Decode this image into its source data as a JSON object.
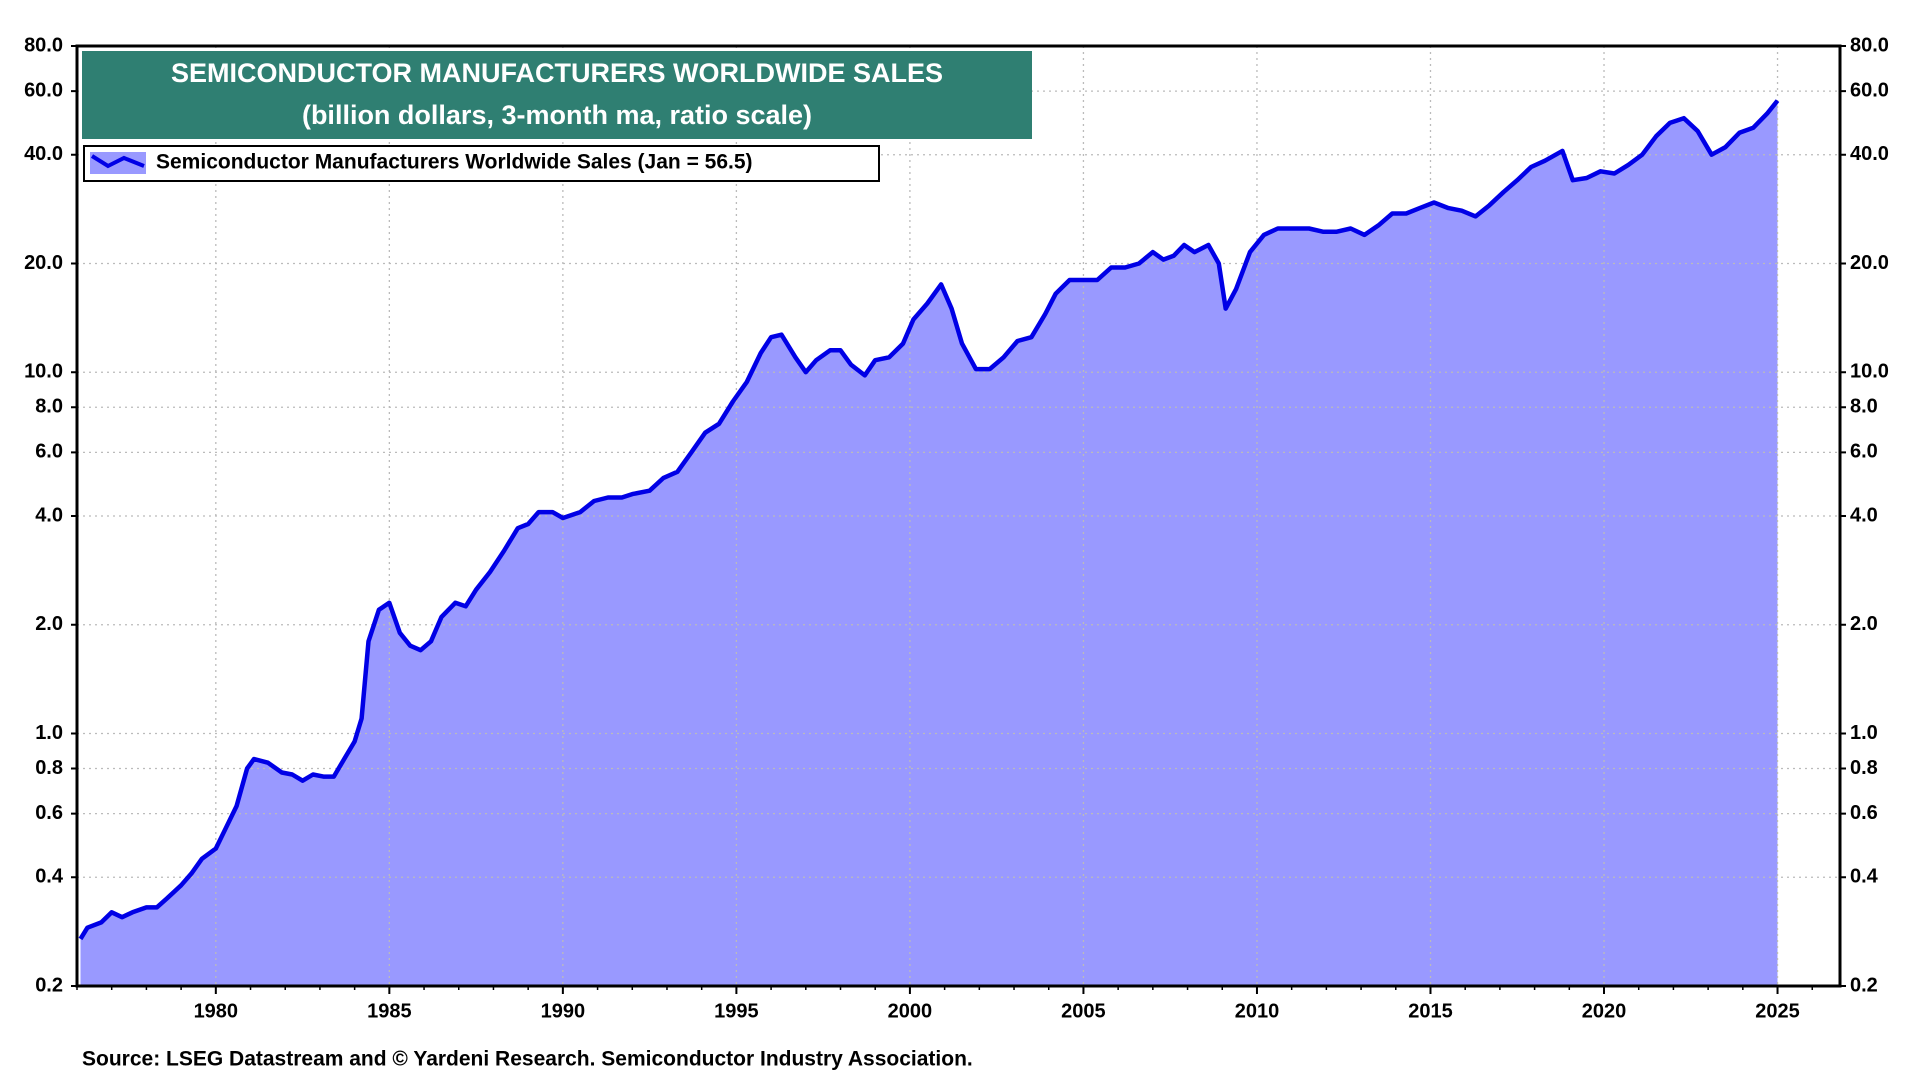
{
  "chart_data": {
    "type": "area",
    "log_y": true,
    "grid": true,
    "title": "SEMICONDUCTOR MANUFACTURERS WORLDWIDE SALES",
    "subtitle": "(billion dollars, 3-month ma, ratio scale)",
    "source": "Source: LSEG Datastream and © Yardeni Research. Semiconductor Industry Association.",
    "legend": "upper left",
    "xlim": [
      1976,
      2026.8
    ],
    "xticks": [
      1980,
      1985,
      1990,
      1995,
      2000,
      2005,
      2010,
      2015,
      2020,
      2025
    ],
    "ylim": [
      0.2,
      80
    ],
    "yticks": [
      0.2,
      0.4,
      0.6,
      0.8,
      {
        "value": 1,
        "label": "1.0"
      },
      {
        "value": 2,
        "label": "2.0"
      },
      {
        "value": 4,
        "label": "4.0"
      },
      {
        "value": 6,
        "label": "6.0"
      },
      {
        "value": 8,
        "label": "8.0"
      },
      {
        "value": 10,
        "label": "10.0"
      },
      {
        "value": 20,
        "label": "20.0"
      },
      {
        "value": 40,
        "label": "40.0"
      },
      {
        "value": 60,
        "label": "60.0"
      },
      {
        "value": 80,
        "label": "80.0"
      }
    ],
    "x": [
      1976.1,
      1976.3,
      1976.7,
      1977.0,
      1977.3,
      1977.6,
      1978.0,
      1978.3,
      1978.6,
      1979.0,
      1979.3,
      1979.6,
      1980.0,
      1980.3,
      1980.6,
      1980.9,
      1981.1,
      1981.5,
      1981.9,
      1982.2,
      1982.5,
      1982.8,
      1983.1,
      1983.4,
      1983.7,
      1984.0,
      1984.2,
      1984.4,
      1984.7,
      1985.0,
      1985.3,
      1985.6,
      1985.9,
      1986.2,
      1986.5,
      1986.9,
      1987.2,
      1987.5,
      1987.9,
      1988.3,
      1988.7,
      1989.0,
      1989.3,
      1989.7,
      1990.0,
      1990.5,
      1990.9,
      1991.3,
      1991.7,
      1992.0,
      1992.5,
      1992.9,
      1993.3,
      1993.7,
      1994.1,
      1994.5,
      1994.9,
      1995.3,
      1995.7,
      1996.0,
      1996.3,
      1996.7,
      1997.0,
      1997.3,
      1997.7,
      1998.0,
      1998.3,
      1998.7,
      1999.0,
      1999.4,
      1999.8,
      2000.1,
      2000.5,
      2000.9,
      2001.2,
      2001.5,
      2001.9,
      2002.3,
      2002.7,
      2003.1,
      2003.5,
      2003.9,
      2004.2,
      2004.6,
      2005.0,
      2005.4,
      2005.8,
      2006.2,
      2006.6,
      2007.0,
      2007.3,
      2007.6,
      2007.9,
      2008.2,
      2008.6,
      2008.9,
      2009.1,
      2009.4,
      2009.8,
      2010.2,
      2010.6,
      2011.0,
      2011.5,
      2011.9,
      2012.3,
      2012.7,
      2013.1,
      2013.5,
      2013.9,
      2014.3,
      2014.7,
      2015.1,
      2015.5,
      2015.9,
      2016.3,
      2016.7,
      2017.1,
      2017.5,
      2017.9,
      2018.3,
      2018.8,
      2019.1,
      2019.5,
      2019.9,
      2020.3,
      2020.7,
      2021.1,
      2021.5,
      2021.9,
      2022.3,
      2022.7,
      2023.1,
      2023.5,
      2023.9,
      2024.3,
      2024.7,
      2025.0
    ],
    "series": [
      {
        "name": "Semiconductor Manufacturers Worldwide Sales (Jan = 56.5)",
        "color": "#0000e6",
        "fill": "#9999ff",
        "values": [
          0.27,
          0.29,
          0.3,
          0.32,
          0.31,
          0.32,
          0.33,
          0.33,
          0.35,
          0.38,
          0.41,
          0.45,
          0.48,
          0.55,
          0.63,
          0.8,
          0.85,
          0.83,
          0.78,
          0.77,
          0.74,
          0.77,
          0.76,
          0.76,
          0.85,
          0.95,
          1.1,
          1.8,
          2.2,
          2.3,
          1.9,
          1.75,
          1.7,
          1.8,
          2.1,
          2.3,
          2.25,
          2.5,
          2.8,
          3.2,
          3.7,
          3.8,
          4.1,
          4.1,
          3.95,
          4.1,
          4.4,
          4.5,
          4.5,
          4.6,
          4.7,
          5.1,
          5.3,
          6.0,
          6.8,
          7.2,
          8.3,
          9.4,
          11.3,
          12.5,
          12.7,
          11.0,
          10.0,
          10.8,
          11.5,
          11.5,
          10.5,
          9.8,
          10.8,
          11.0,
          12.0,
          14.0,
          15.5,
          17.5,
          15.0,
          12.0,
          10.2,
          10.2,
          11.0,
          12.2,
          12.5,
          14.5,
          16.5,
          18.0,
          18.0,
          18.0,
          19.5,
          19.5,
          20.0,
          21.5,
          20.5,
          21.0,
          22.5,
          21.5,
          22.5,
          20.0,
          15.0,
          17.0,
          21.5,
          24.0,
          25.0,
          25.0,
          25.0,
          24.5,
          24.5,
          25.0,
          24.0,
          25.5,
          27.5,
          27.5,
          28.5,
          29.5,
          28.5,
          28.0,
          27.0,
          29.0,
          31.5,
          34.0,
          37.0,
          38.5,
          41.0,
          34.0,
          34.5,
          36.0,
          35.5,
          37.5,
          40.0,
          45.0,
          49.0,
          50.5,
          46.5,
          40.0,
          42.0,
          46.0,
          47.5,
          52.0,
          56.5
        ]
      }
    ]
  }
}
